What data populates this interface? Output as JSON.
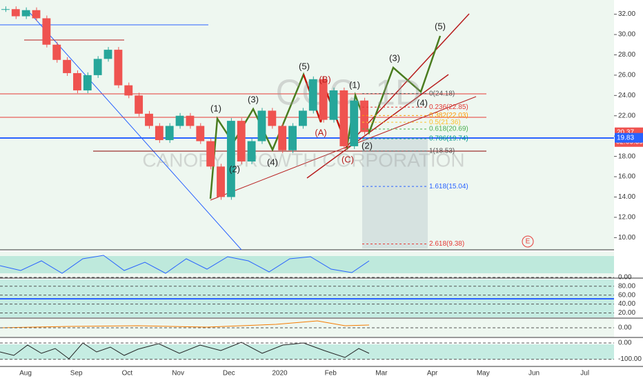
{
  "chart_data": {
    "type": "candlestick",
    "watermark": "CGC, 1D",
    "watermark_sub": "CANOPY GROWTH CORPORATION",
    "prices": [
      32.5,
      31.8,
      32.4,
      31.6,
      29,
      27.5,
      26.2,
      24.5,
      26,
      27.6,
      28.5,
      25,
      24,
      22.2,
      21,
      19.6,
      21,
      22,
      21,
      19.5,
      17,
      14,
      21.5,
      17.5,
      19.5,
      22.5,
      21,
      18.6,
      21,
      22.5,
      25.6,
      21.6,
      24.5,
      19,
      23.5,
      20.4
    ],
    "up_color": "#26a69a",
    "down_color": "#ef5350",
    "ylim": [
      8.8,
      33.4
    ],
    "yticks": [
      {
        "value": 10,
        "label": "10.00"
      },
      {
        "value": 12,
        "label": "12.00"
      },
      {
        "value": 14,
        "label": "14.00"
      },
      {
        "value": 16,
        "label": "16.00"
      },
      {
        "value": 18,
        "label": "18.00"
      },
      {
        "value": 20,
        "label": "20.00"
      },
      {
        "value": 22,
        "label": "22.00"
      },
      {
        "value": 24,
        "label": "24.00"
      },
      {
        "value": 26,
        "label": "26.00"
      },
      {
        "value": 28,
        "label": "28.00"
      },
      {
        "value": 30,
        "label": "30.00"
      },
      {
        "value": 32,
        "label": "32.00"
      }
    ],
    "months": [
      "Aug",
      "Sep",
      "Oct",
      "Nov",
      "Dec",
      "2020",
      "Feb",
      "Mar",
      "Apr",
      "May",
      "Jun",
      "Jul"
    ],
    "fib": [
      {
        "label": "0(24.18)",
        "price": 24.18
      },
      {
        "label": "0.236(22.85)",
        "price": 22.85
      },
      {
        "label": "0.382(22.03)",
        "price": 22.03
      },
      {
        "label": "0.5(21.36)",
        "price": 21.36
      },
      {
        "label": "0.618(20.69)",
        "price": 20.69
      },
      {
        "label": "0.786(19.74)",
        "price": 19.74
      },
      {
        "label": "1(18.53)",
        "price": 18.53
      },
      {
        "label": "1.618(15.04)",
        "price": 15.04
      },
      {
        "label": "2.618(9.38)",
        "price": 9.38
      }
    ],
    "waves": [
      "(1)",
      "(2)",
      "(3)",
      "(4)",
      "(5)",
      "(A)",
      "(B)",
      "(C)",
      "(1)",
      "(2)",
      "(3)",
      "(4)",
      "(5)"
    ],
    "last_price": 20.37,
    "countdown": "02:09:39",
    "low_tag": 19.83,
    "event_label": "E",
    "panes": [
      {
        "ticks": [
          {
            "value": 0,
            "label": "0.00"
          }
        ],
        "lim": [
          0,
          100
        ]
      },
      {
        "ticks": [
          {
            "value": 80,
            "label": "80.00"
          },
          {
            "value": 60,
            "label": "60.00"
          },
          {
            "value": 40,
            "label": "40.00"
          },
          {
            "value": 20,
            "label": "20.00"
          }
        ],
        "lim": [
          10,
          95
        ]
      },
      {
        "ticks": [
          {
            "value": 0,
            "label": "0.00"
          }
        ],
        "lim": [
          -1,
          1
        ]
      },
      {
        "ticks": [
          {
            "value": 0,
            "label": "0.00"
          },
          {
            "value": -100,
            "label": "-100.00"
          }
        ],
        "lim": [
          -140,
          30
        ]
      }
    ]
  }
}
